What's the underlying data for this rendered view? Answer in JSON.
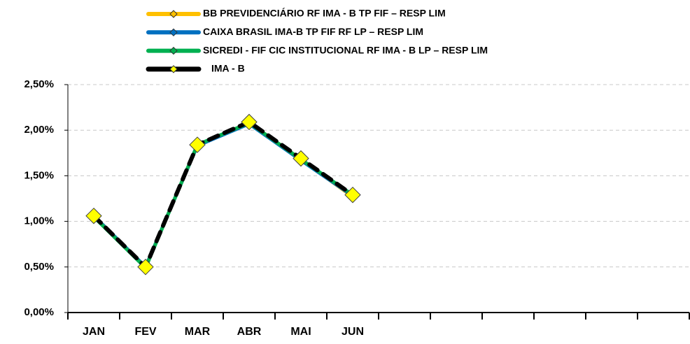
{
  "chart_data": {
    "type": "line",
    "categories": [
      "JAN",
      "FEV",
      "MAR",
      "ABR",
      "MAI",
      "JUN",
      null,
      null,
      null,
      null,
      null,
      null
    ],
    "series": [
      {
        "name": "BB PREVIDENCIÁRIO RF IMA - B TP FIF – RESP LIM",
        "color": "#ffc000",
        "values": [
          1.06,
          0.5,
          1.83,
          2.08,
          1.68,
          1.27,
          null,
          null,
          null,
          null,
          null,
          null
        ]
      },
      {
        "name": "CAIXA BRASIL IMA-B TP FIF RF LP – RESP LIM",
        "color": "#0070c0",
        "values": [
          1.06,
          0.5,
          1.83,
          2.07,
          1.67,
          1.28,
          null,
          null,
          null,
          null,
          null,
          null
        ]
      },
      {
        "name": "SICREDI - FIF CIC INSTITUCIONAL RF IMA - B LP – RESP LIM",
        "color": "#00b050",
        "values": [
          1.05,
          0.49,
          1.84,
          2.08,
          1.68,
          1.29,
          null,
          null,
          null,
          null,
          null,
          null
        ]
      },
      {
        "name": "IMA - B",
        "color": "#000000",
        "values": [
          1.06,
          0.5,
          1.84,
          2.09,
          1.69,
          1.29,
          null,
          null,
          null,
          null,
          null,
          null
        ]
      }
    ],
    "ylim": [
      0,
      2.5
    ],
    "yticks": [
      {
        "value": 0,
        "label": "0,00%"
      },
      {
        "value": 0.5,
        "label": "0,50%"
      },
      {
        "value": 1,
        "label": "1,00%"
      },
      {
        "value": 1.5,
        "label": "1,50%"
      },
      {
        "value": 2,
        "label": "2,00%"
      },
      {
        "value": 2.5,
        "label": "2,50%"
      }
    ],
    "grid": true,
    "legend": "top"
  }
}
